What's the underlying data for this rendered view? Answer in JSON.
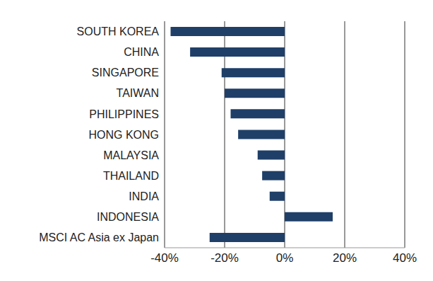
{
  "chart_data": {
    "type": "bar",
    "orientation": "horizontal",
    "categories": [
      "SOUTH KOREA",
      "CHINA",
      "SINGAPORE",
      "TAIWAN",
      "PHILIPPINES",
      "HONG KONG",
      "MALAYSIA",
      "THAILAND",
      "INDIA",
      "INDONESIA",
      "MSCI AC Asia ex Japan"
    ],
    "values": [
      -38,
      -31.5,
      -21,
      -20,
      -18,
      -15.5,
      -9,
      -7.5,
      -5,
      16,
      -25
    ],
    "color": "#1f3f68",
    "xlim": [
      -40,
      40
    ],
    "xticks": [
      {
        "value": -40,
        "label": "-40%"
      },
      {
        "value": -20,
        "label": "-20%"
      },
      {
        "value": 0,
        "label": "0%"
      },
      {
        "value": 20,
        "label": "20%"
      },
      {
        "value": 40,
        "label": "40%"
      }
    ],
    "grid": true
  }
}
